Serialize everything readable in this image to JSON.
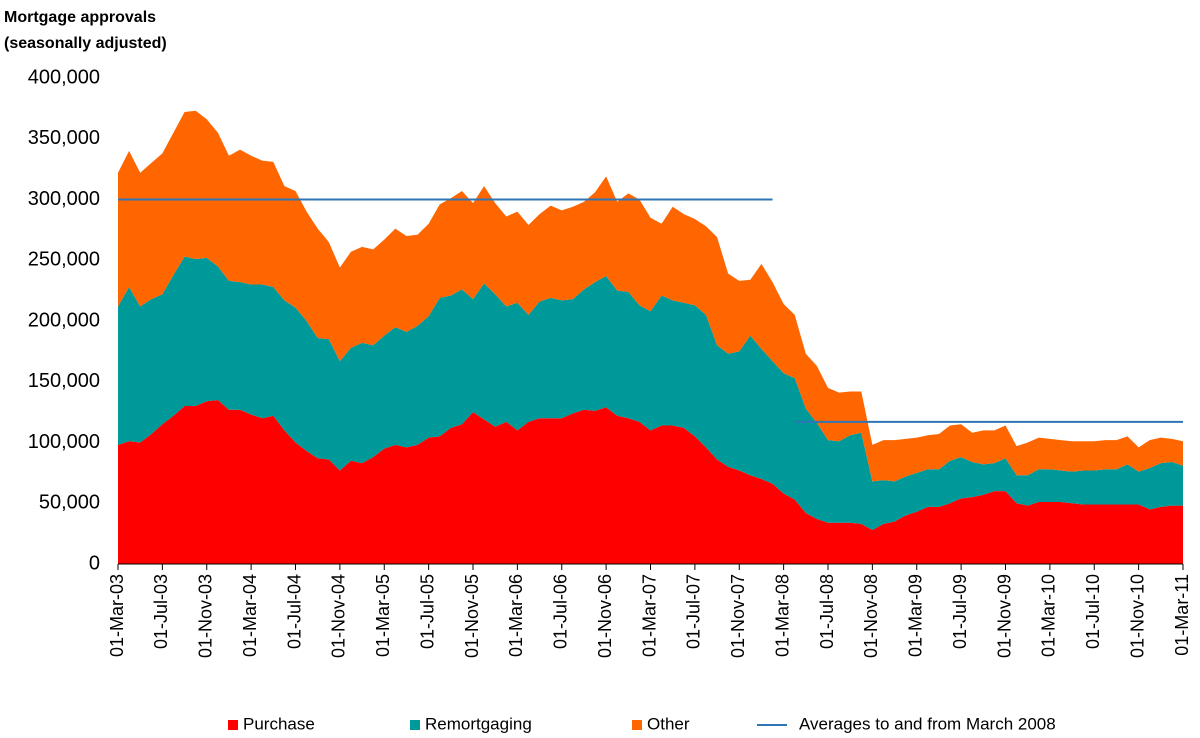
{
  "chart_data": {
    "type": "area",
    "stacked": true,
    "title": "Mortgage approvals",
    "subtitle": "(seasonally adjusted)",
    "categories": [
      "01-Mar-03",
      null,
      null,
      null,
      "01-Jul-03",
      null,
      null,
      null,
      "01-Nov-03",
      null,
      null,
      null,
      "01-Mar-04",
      null,
      null,
      null,
      "01-Jul-04",
      null,
      null,
      null,
      "01-Nov-04",
      null,
      null,
      null,
      "01-Mar-05",
      null,
      null,
      null,
      "01-Jul-05",
      null,
      null,
      null,
      "01-Nov-05",
      null,
      null,
      null,
      "01-Mar-06",
      null,
      null,
      null,
      "01-Jul-06",
      null,
      null,
      null,
      "01-Nov-06",
      null,
      null,
      null,
      "01-Mar-07",
      null,
      null,
      null,
      "01-Jul-07",
      null,
      null,
      null,
      "01-Nov-07",
      null,
      null,
      null,
      "01-Mar-08",
      null,
      null,
      null,
      "01-Jul-08",
      null,
      null,
      null,
      "01-Nov-08",
      null,
      null,
      null,
      "01-Mar-09",
      null,
      null,
      null,
      "01-Jul-09",
      null,
      null,
      null,
      "01-Nov-09",
      null,
      null,
      null,
      "01-Mar-10",
      null,
      null,
      null,
      "01-Jul-10",
      null,
      null,
      null,
      "01-Nov-10",
      null,
      null,
      null,
      "01-Mar-11"
    ],
    "series": [
      {
        "name": "Purchase",
        "color": "#ff0000",
        "values": [
          98000,
          101000,
          100000,
          107000,
          115000,
          122000,
          130000,
          130000,
          134000,
          135000,
          127000,
          127000,
          123000,
          120000,
          122000,
          110000,
          100000,
          93000,
          87000,
          86000,
          77000,
          85000,
          83000,
          88000,
          95000,
          98000,
          96000,
          98000,
          104000,
          105000,
          112000,
          115000,
          125000,
          119000,
          113000,
          117000,
          110000,
          117000,
          120000,
          120000,
          120000,
          124000,
          127000,
          126000,
          129000,
          122000,
          120000,
          117000,
          110000,
          114000,
          114000,
          112000,
          105000,
          96000,
          86000,
          80000,
          77000,
          73000,
          70000,
          66000,
          58000,
          53000,
          42000,
          37000,
          34000,
          34000,
          34000,
          33000,
          28000,
          33000,
          35000,
          40000,
          43000,
          47000,
          47000,
          50000,
          54000,
          55000,
          57000,
          60000,
          60000,
          50000,
          48000,
          51000,
          51000,
          51000,
          50000,
          49000,
          49000,
          49000,
          49000,
          49000,
          49000,
          45000,
          47000,
          48000,
          48000
        ]
      },
      {
        "name": "Remortgaging",
        "color": "#009999",
        "values": [
          114000,
          127000,
          112000,
          111000,
          107000,
          116000,
          123000,
          121000,
          118000,
          110000,
          106000,
          105000,
          107000,
          110000,
          106000,
          107000,
          111000,
          107000,
          99000,
          99000,
          90000,
          93000,
          99000,
          92000,
          93000,
          97000,
          95000,
          98000,
          100000,
          114000,
          109000,
          111000,
          93000,
          112000,
          109000,
          95000,
          105000,
          88000,
          96000,
          99000,
          97000,
          94000,
          99000,
          106000,
          108000,
          103000,
          104000,
          96000,
          98000,
          107000,
          103000,
          103000,
          108000,
          109000,
          94000,
          93000,
          98000,
          115000,
          107000,
          101000,
          99000,
          100000,
          86000,
          79000,
          68000,
          67000,
          72000,
          75000,
          40000,
          36000,
          33000,
          32000,
          32000,
          31000,
          31000,
          35000,
          34000,
          29000,
          25000,
          23000,
          27000,
          23000,
          25000,
          27000,
          27000,
          26000,
          26000,
          28000,
          28000,
          29000,
          29000,
          33000,
          27000,
          34000,
          36000,
          36000,
          33000
        ]
      },
      {
        "name": "Other",
        "color": "#ff6600",
        "values": [
          110000,
          112000,
          110000,
          112000,
          116000,
          117000,
          119000,
          122000,
          114000,
          110000,
          103000,
          109000,
          106000,
          102000,
          103000,
          94000,
          96000,
          90000,
          90000,
          80000,
          77000,
          79000,
          79000,
          79000,
          79000,
          81000,
          79000,
          75000,
          76000,
          77000,
          80000,
          81000,
          79000,
          80000,
          75000,
          74000,
          75000,
          74000,
          72000,
          76000,
          74000,
          76000,
          72000,
          74000,
          82000,
          73000,
          81000,
          87000,
          77000,
          59000,
          77000,
          73000,
          71000,
          73000,
          89000,
          66000,
          58000,
          46000,
          70000,
          65000,
          57000,
          52000,
          45000,
          47000,
          43000,
          40000,
          36000,
          34000,
          30000,
          33000,
          34000,
          31000,
          29000,
          28000,
          29000,
          29000,
          27000,
          24000,
          28000,
          27000,
          27000,
          24000,
          27000,
          26000,
          25000,
          25000,
          25000,
          24000,
          24000,
          24000,
          24000,
          23000,
          20000,
          23000,
          21000,
          19000,
          20000
        ]
      },
      {
        "name": "Averages to and from March 2008",
        "color": "#2e75b6",
        "type": "line",
        "values": [
          300000,
          300000,
          300000,
          300000,
          300000,
          300000,
          300000,
          300000,
          300000,
          300000,
          300000,
          300000,
          300000,
          300000,
          300000,
          300000,
          300000,
          300000,
          300000,
          300000,
          300000,
          300000,
          300000,
          300000,
          300000,
          300000,
          300000,
          300000,
          300000,
          300000,
          300000,
          300000,
          300000,
          300000,
          300000,
          300000,
          300000,
          300000,
          300000,
          300000,
          300000,
          300000,
          300000,
          300000,
          300000,
          300000,
          300000,
          300000,
          300000,
          300000,
          300000,
          300000,
          300000,
          300000,
          300000,
          300000,
          300000,
          300000,
          300000,
          300000,
          null,
          117000,
          117000,
          117000,
          117000,
          117000,
          117000,
          117000,
          117000,
          117000,
          117000,
          117000,
          117000,
          117000,
          117000,
          117000,
          117000,
          117000,
          117000,
          117000,
          117000,
          117000,
          117000,
          117000,
          117000,
          117000,
          117000,
          117000,
          117000,
          117000,
          117000,
          117000,
          117000,
          117000,
          117000,
          117000,
          117000
        ]
      }
    ],
    "ylim": [
      0,
      400000
    ],
    "yticks": [
      0,
      {
        "value": 50000,
        "label": "50,000"
      },
      {
        "value": 100000,
        "label": "100,000"
      },
      {
        "value": 150000,
        "label": "150,000"
      },
      {
        "value": 200000,
        "label": "200,000"
      },
      {
        "value": 250000,
        "label": "250,000"
      },
      {
        "value": 300000,
        "label": "300,000"
      },
      {
        "value": 350000,
        "label": "350,000"
      },
      {
        "value": 400000,
        "label": "400,000"
      }
    ],
    "grid": false,
    "legend": "bottom"
  }
}
